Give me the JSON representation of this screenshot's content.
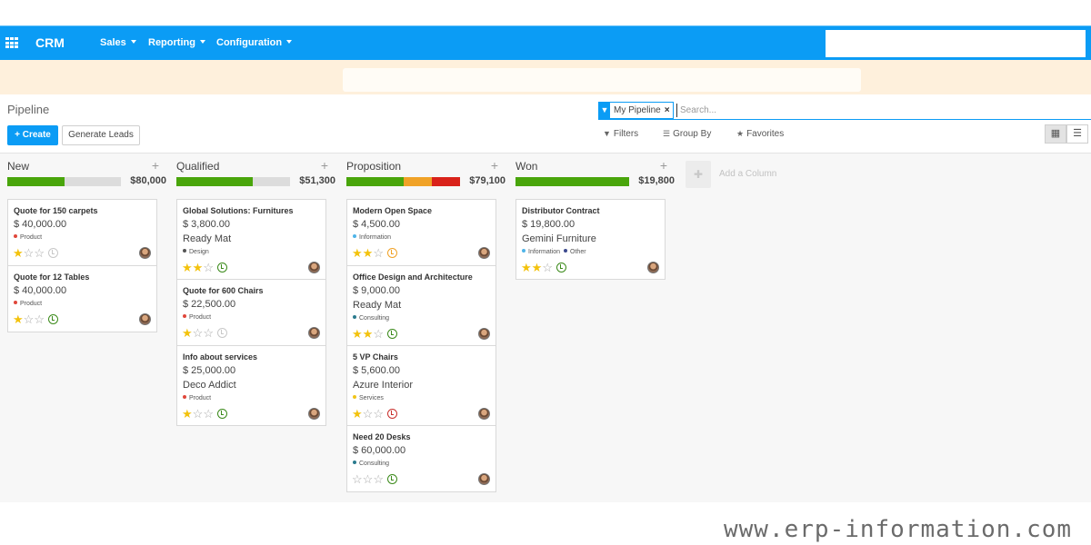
{
  "navbar": {
    "brand": "CRM",
    "menus": [
      {
        "label": "Sales"
      },
      {
        "label": "Reporting"
      },
      {
        "label": "Configuration"
      }
    ]
  },
  "control_panel": {
    "breadcrumb": "Pipeline",
    "create_label": "+ Create",
    "generate_leads_label": "Generate Leads",
    "search": {
      "facet_label": "My Pipeline",
      "facet_remove": "×",
      "placeholder": "Search..."
    },
    "filters_label": "Filters",
    "group_by_label": "Group By",
    "favorites_label": "Favorites"
  },
  "colors": {
    "brand": "#0b9cf5",
    "progress_green": "#49a50b",
    "progress_orange": "#f0a227",
    "progress_red": "#d9221a"
  },
  "columns": [
    {
      "title": "New",
      "total": "$80,000",
      "progress": [
        {
          "color": "#49a50b",
          "fraction": 0.5
        }
      ],
      "cards": [
        {
          "name": "Quote for 150 carpets",
          "amount": "$ 40,000.00",
          "company": "",
          "tags": [
            {
              "label": "Product",
              "color": "#e0473b"
            }
          ],
          "stars": 1,
          "activity": "grey"
        },
        {
          "name": "Quote for 12 Tables",
          "amount": "$ 40,000.00",
          "company": "",
          "tags": [
            {
              "label": "Product",
              "color": "#e0473b"
            }
          ],
          "stars": 1,
          "activity": "green"
        }
      ]
    },
    {
      "title": "Qualified",
      "total": "$51,300",
      "progress": [
        {
          "color": "#49a50b",
          "fraction": 0.67
        }
      ],
      "cards": [
        {
          "name": "Global Solutions: Furnitures",
          "amount": "$ 3,800.00",
          "company": "Ready Mat",
          "tags": [
            {
              "label": "Design",
              "color": "#555555"
            }
          ],
          "stars": 2,
          "activity": "green"
        },
        {
          "name": "Quote for 600 Chairs",
          "amount": "$ 22,500.00",
          "company": "",
          "tags": [
            {
              "label": "Product",
              "color": "#e0473b"
            }
          ],
          "stars": 1,
          "activity": "grey"
        },
        {
          "name": "Info about services",
          "amount": "$ 25,000.00",
          "company": "Deco Addict",
          "tags": [
            {
              "label": "Product",
              "color": "#e0473b"
            }
          ],
          "stars": 1,
          "activity": "green"
        }
      ]
    },
    {
      "title": "Proposition",
      "total": "$79,100",
      "progress": [
        {
          "color": "#49a50b",
          "fraction": 0.5
        },
        {
          "color": "#f0a227",
          "fraction": 0.25
        },
        {
          "color": "#d9221a",
          "fraction": 0.25
        }
      ],
      "cards": [
        {
          "name": "Modern Open Space",
          "amount": "$ 4,500.00",
          "company": "",
          "tags": [
            {
              "label": "Information",
              "color": "#4fb4e8"
            }
          ],
          "stars": 2,
          "activity": "orange"
        },
        {
          "name": "Office Design and Architecture",
          "amount": "$ 9,000.00",
          "company": "Ready Mat",
          "tags": [
            {
              "label": "Consulting",
              "color": "#2a7b8e"
            }
          ],
          "stars": 2,
          "activity": "green"
        },
        {
          "name": "5 VP Chairs",
          "amount": "$ 5,600.00",
          "company": "Azure Interior",
          "tags": [
            {
              "label": "Services",
              "color": "#f0c419"
            }
          ],
          "stars": 1,
          "activity": "red"
        },
        {
          "name": "Need 20 Desks",
          "amount": "$ 60,000.00",
          "company": "",
          "tags": [
            {
              "label": "Consulting",
              "color": "#2a7b8e"
            }
          ],
          "stars": 0,
          "activity": "green"
        }
      ]
    },
    {
      "title": "Won",
      "total": "$19,800",
      "progress": [
        {
          "color": "#49a50b",
          "fraction": 1.0
        }
      ],
      "cards": [
        {
          "name": "Distributor Contract",
          "amount": "$ 19,800.00",
          "company": "Gemini Furniture",
          "tags": [
            {
              "label": "Information",
              "color": "#4fb4e8"
            },
            {
              "label": "Other",
              "color": "#3c4a8e"
            }
          ],
          "stars": 2,
          "activity": "green"
        }
      ]
    }
  ],
  "add_column_label": "Add a Column",
  "watermark": "www.erp-information.com"
}
